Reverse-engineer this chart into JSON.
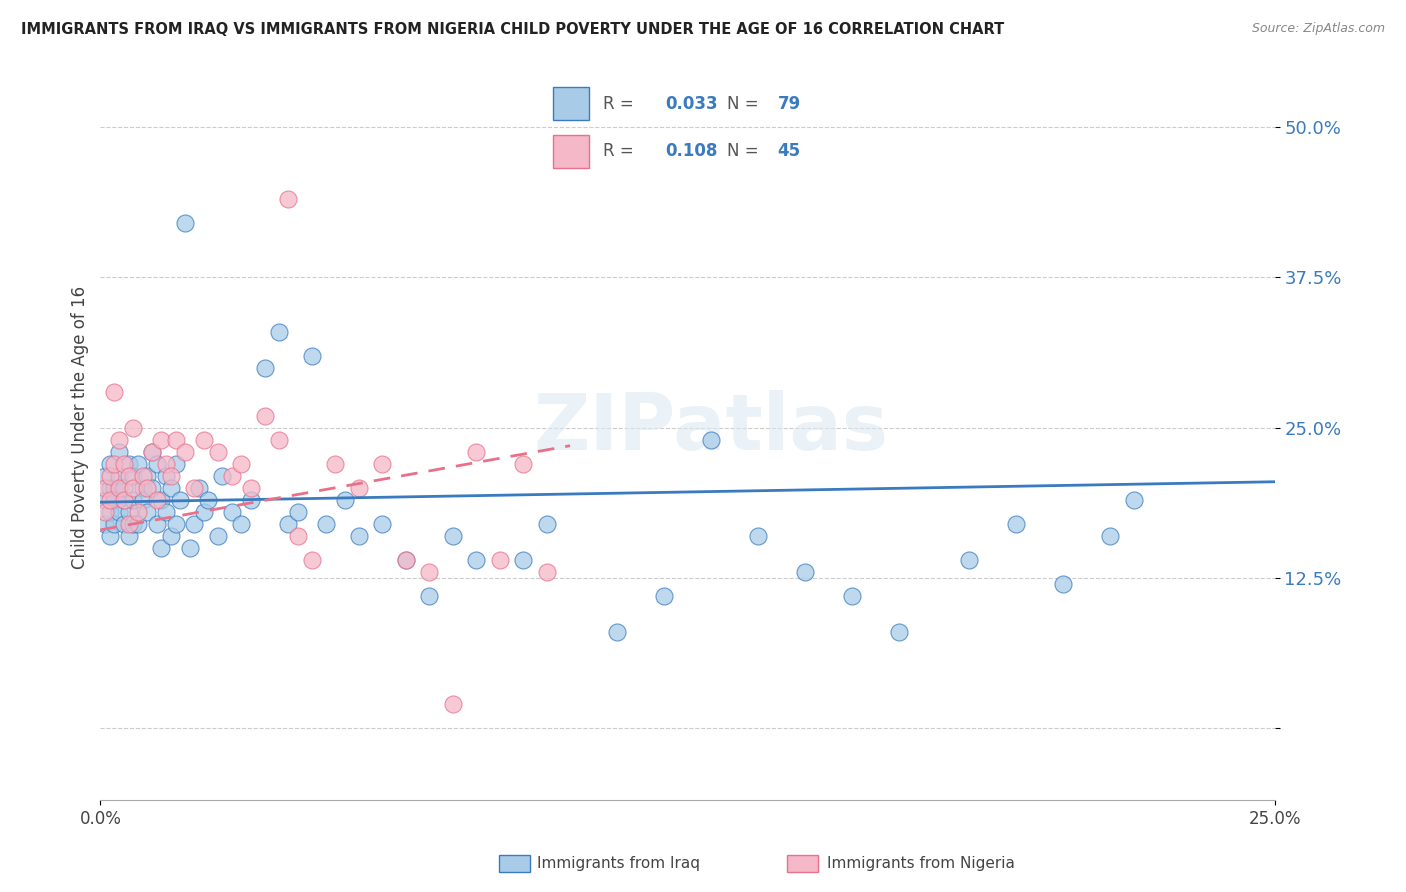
{
  "title": "IMMIGRANTS FROM IRAQ VS IMMIGRANTS FROM NIGERIA CHILD POVERTY UNDER THE AGE OF 16 CORRELATION CHART",
  "source": "Source: ZipAtlas.com",
  "ylabel": "Child Poverty Under the Age of 16",
  "legend_label1": "Immigrants from Iraq",
  "legend_label2": "Immigrants from Nigeria",
  "r1": 0.033,
  "n1": 79,
  "r2": 0.108,
  "n2": 45,
  "color_iraq": "#a8cce8",
  "color_nigeria": "#f5b8c8",
  "color_iraq_line": "#3a7bbf",
  "color_nigeria_line": "#e8708a",
  "xlim": [
    0.0,
    0.25
  ],
  "ylim": [
    -0.06,
    0.56
  ],
  "ytick_vals": [
    0.0,
    0.125,
    0.25,
    0.375,
    0.5
  ],
  "ytick_labels": [
    "",
    "12.5%",
    "25.0%",
    "37.5%",
    "50.0%"
  ],
  "watermark": "ZIPatlas",
  "iraq_x": [
    0.001,
    0.001,
    0.001,
    0.002,
    0.002,
    0.002,
    0.002,
    0.003,
    0.003,
    0.003,
    0.004,
    0.004,
    0.004,
    0.005,
    0.005,
    0.005,
    0.006,
    0.006,
    0.006,
    0.007,
    0.007,
    0.007,
    0.008,
    0.008,
    0.009,
    0.009,
    0.01,
    0.01,
    0.011,
    0.011,
    0.012,
    0.012,
    0.013,
    0.013,
    0.014,
    0.014,
    0.015,
    0.015,
    0.016,
    0.016,
    0.017,
    0.018,
    0.019,
    0.02,
    0.021,
    0.022,
    0.023,
    0.025,
    0.026,
    0.028,
    0.03,
    0.032,
    0.035,
    0.038,
    0.04,
    0.042,
    0.045,
    0.048,
    0.052,
    0.055,
    0.06,
    0.065,
    0.07,
    0.075,
    0.08,
    0.09,
    0.095,
    0.11,
    0.12,
    0.13,
    0.14,
    0.15,
    0.16,
    0.17,
    0.185,
    0.195,
    0.205,
    0.215,
    0.22
  ],
  "iraq_y": [
    0.19,
    0.21,
    0.17,
    0.2,
    0.18,
    0.22,
    0.16,
    0.2,
    0.17,
    0.19,
    0.21,
    0.18,
    0.23,
    0.19,
    0.2,
    0.17,
    0.22,
    0.18,
    0.16,
    0.21,
    0.17,
    0.19,
    0.22,
    0.17,
    0.2,
    0.19,
    0.21,
    0.18,
    0.23,
    0.2,
    0.22,
    0.17,
    0.19,
    0.15,
    0.21,
    0.18,
    0.2,
    0.16,
    0.22,
    0.17,
    0.19,
    0.42,
    0.15,
    0.17,
    0.2,
    0.18,
    0.19,
    0.16,
    0.21,
    0.18,
    0.17,
    0.19,
    0.3,
    0.33,
    0.17,
    0.18,
    0.31,
    0.17,
    0.19,
    0.16,
    0.17,
    0.14,
    0.11,
    0.16,
    0.14,
    0.14,
    0.17,
    0.08,
    0.11,
    0.24,
    0.16,
    0.13,
    0.11,
    0.08,
    0.14,
    0.17,
    0.12,
    0.16,
    0.19
  ],
  "nigeria_x": [
    0.001,
    0.001,
    0.002,
    0.002,
    0.003,
    0.003,
    0.004,
    0.004,
    0.005,
    0.005,
    0.006,
    0.006,
    0.007,
    0.007,
    0.008,
    0.009,
    0.01,
    0.011,
    0.012,
    0.013,
    0.014,
    0.015,
    0.016,
    0.018,
    0.02,
    0.022,
    0.025,
    0.028,
    0.03,
    0.032,
    0.035,
    0.038,
    0.04,
    0.042,
    0.045,
    0.05,
    0.055,
    0.06,
    0.065,
    0.07,
    0.075,
    0.08,
    0.085,
    0.09,
    0.095
  ],
  "nigeria_y": [
    0.2,
    0.18,
    0.21,
    0.19,
    0.28,
    0.22,
    0.2,
    0.24,
    0.19,
    0.22,
    0.21,
    0.17,
    0.2,
    0.25,
    0.18,
    0.21,
    0.2,
    0.23,
    0.19,
    0.24,
    0.22,
    0.21,
    0.24,
    0.23,
    0.2,
    0.24,
    0.23,
    0.21,
    0.22,
    0.2,
    0.26,
    0.24,
    0.44,
    0.16,
    0.14,
    0.22,
    0.2,
    0.22,
    0.14,
    0.13,
    0.02,
    0.23,
    0.14,
    0.22,
    0.13
  ]
}
